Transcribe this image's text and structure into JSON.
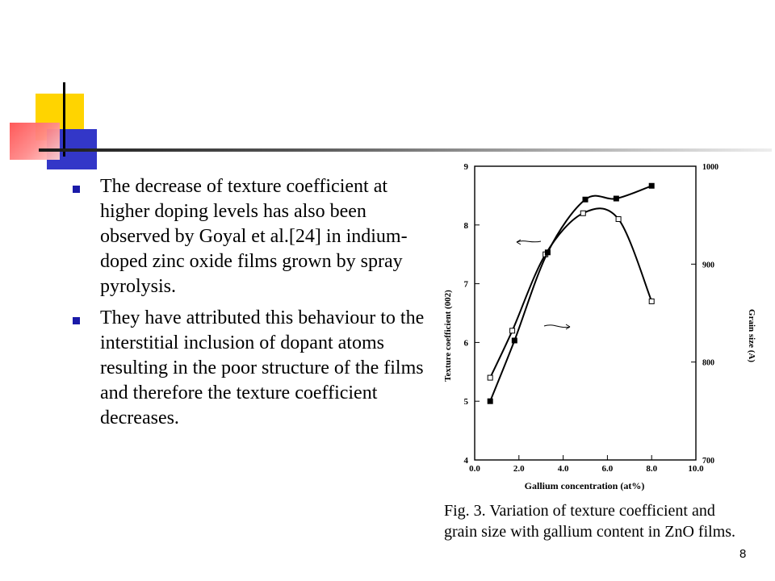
{
  "slide": {
    "bullets": [
      "The decrease of texture coefficient at higher doping levels has also been observed by Goyal et al.[24] in indium-doped zinc oxide films grown by spray pyrolysis.",
      "They have attributed this behaviour to the interstitial inclusion of dopant atoms resulting in the poor structure of the films and therefore the texture coefficient decreases."
    ],
    "caption": "Fig. 3. Variation of texture coefficient and grain size with gallium content in ZnO films.",
    "page_number": "8",
    "colors": {
      "bullet": "#1a1aa8",
      "deco_yellow": "#ffd400",
      "deco_blue": "#3337c8",
      "deco_red": "#ff5050"
    }
  },
  "chart_data": {
    "type": "line",
    "xlabel": "Gallium concentration (at%)",
    "ylabel": "Texture coefficient (002)",
    "y2label": "Grain size (A)",
    "xlim": [
      0,
      10
    ],
    "ylim": [
      4,
      9
    ],
    "y2lim": [
      700,
      1000
    ],
    "x_ticks": [
      "0.0",
      "2.0",
      "4.0",
      "6.0",
      "8.0",
      "10.0"
    ],
    "y_ticks": [
      "4",
      "5",
      "6",
      "7",
      "8",
      "9"
    ],
    "y2_ticks": [
      "700",
      "800",
      "900",
      "1000"
    ],
    "series": [
      {
        "axis": "left",
        "marker": "open-square",
        "x": [
          0.7,
          1.7,
          3.2,
          4.9,
          6.5,
          8.0
        ],
        "y": [
          5.4,
          6.2,
          7.5,
          8.2,
          8.1,
          6.7
        ]
      },
      {
        "axis": "right",
        "marker": "filled-square",
        "x": [
          0.7,
          1.8,
          3.3,
          5.0,
          6.4,
          8.0
        ],
        "y": [
          760,
          822,
          912,
          966,
          967,
          980
        ]
      }
    ]
  }
}
